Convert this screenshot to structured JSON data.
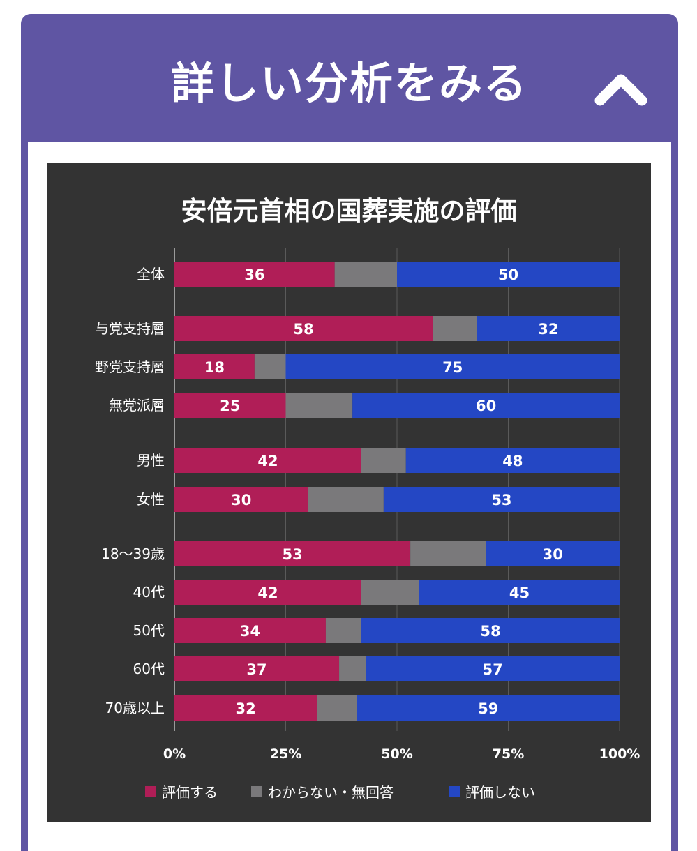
{
  "accordion": {
    "title": "詳しい分析をみる",
    "toggle_icon": "chevron-up-icon"
  },
  "chart_data": {
    "type": "bar",
    "orientation": "horizontal",
    "stacked": true,
    "title": "安倍元首相の国葬実施の評価",
    "categories": [
      "全体",
      "与党支持層",
      "野党支持層",
      "無党派層",
      "男性",
      "女性",
      "18〜39歳",
      "40代",
      "50代",
      "60代",
      "70歳以上"
    ],
    "series": [
      {
        "name": "評価する",
        "color": "#b01e57",
        "values": [
          36,
          58,
          18,
          25,
          42,
          30,
          53,
          42,
          34,
          37,
          32
        ],
        "labeled": true
      },
      {
        "name": "わからない・無回答",
        "color": "#7a797b",
        "values": [
          14,
          10,
          7,
          15,
          10,
          17,
          17,
          13,
          8,
          6,
          9
        ],
        "labeled": false
      },
      {
        "name": "評価しない",
        "color": "#2447c4",
        "values": [
          50,
          32,
          75,
          60,
          48,
          53,
          30,
          45,
          58,
          57,
          59
        ],
        "labeled": true
      }
    ],
    "xlim": [
      0,
      100
    ],
    "x_ticks": [
      "0%",
      "25%",
      "50%",
      "75%",
      "100%"
    ],
    "grid": true,
    "legend_position": "bottom",
    "background": "#333333"
  }
}
